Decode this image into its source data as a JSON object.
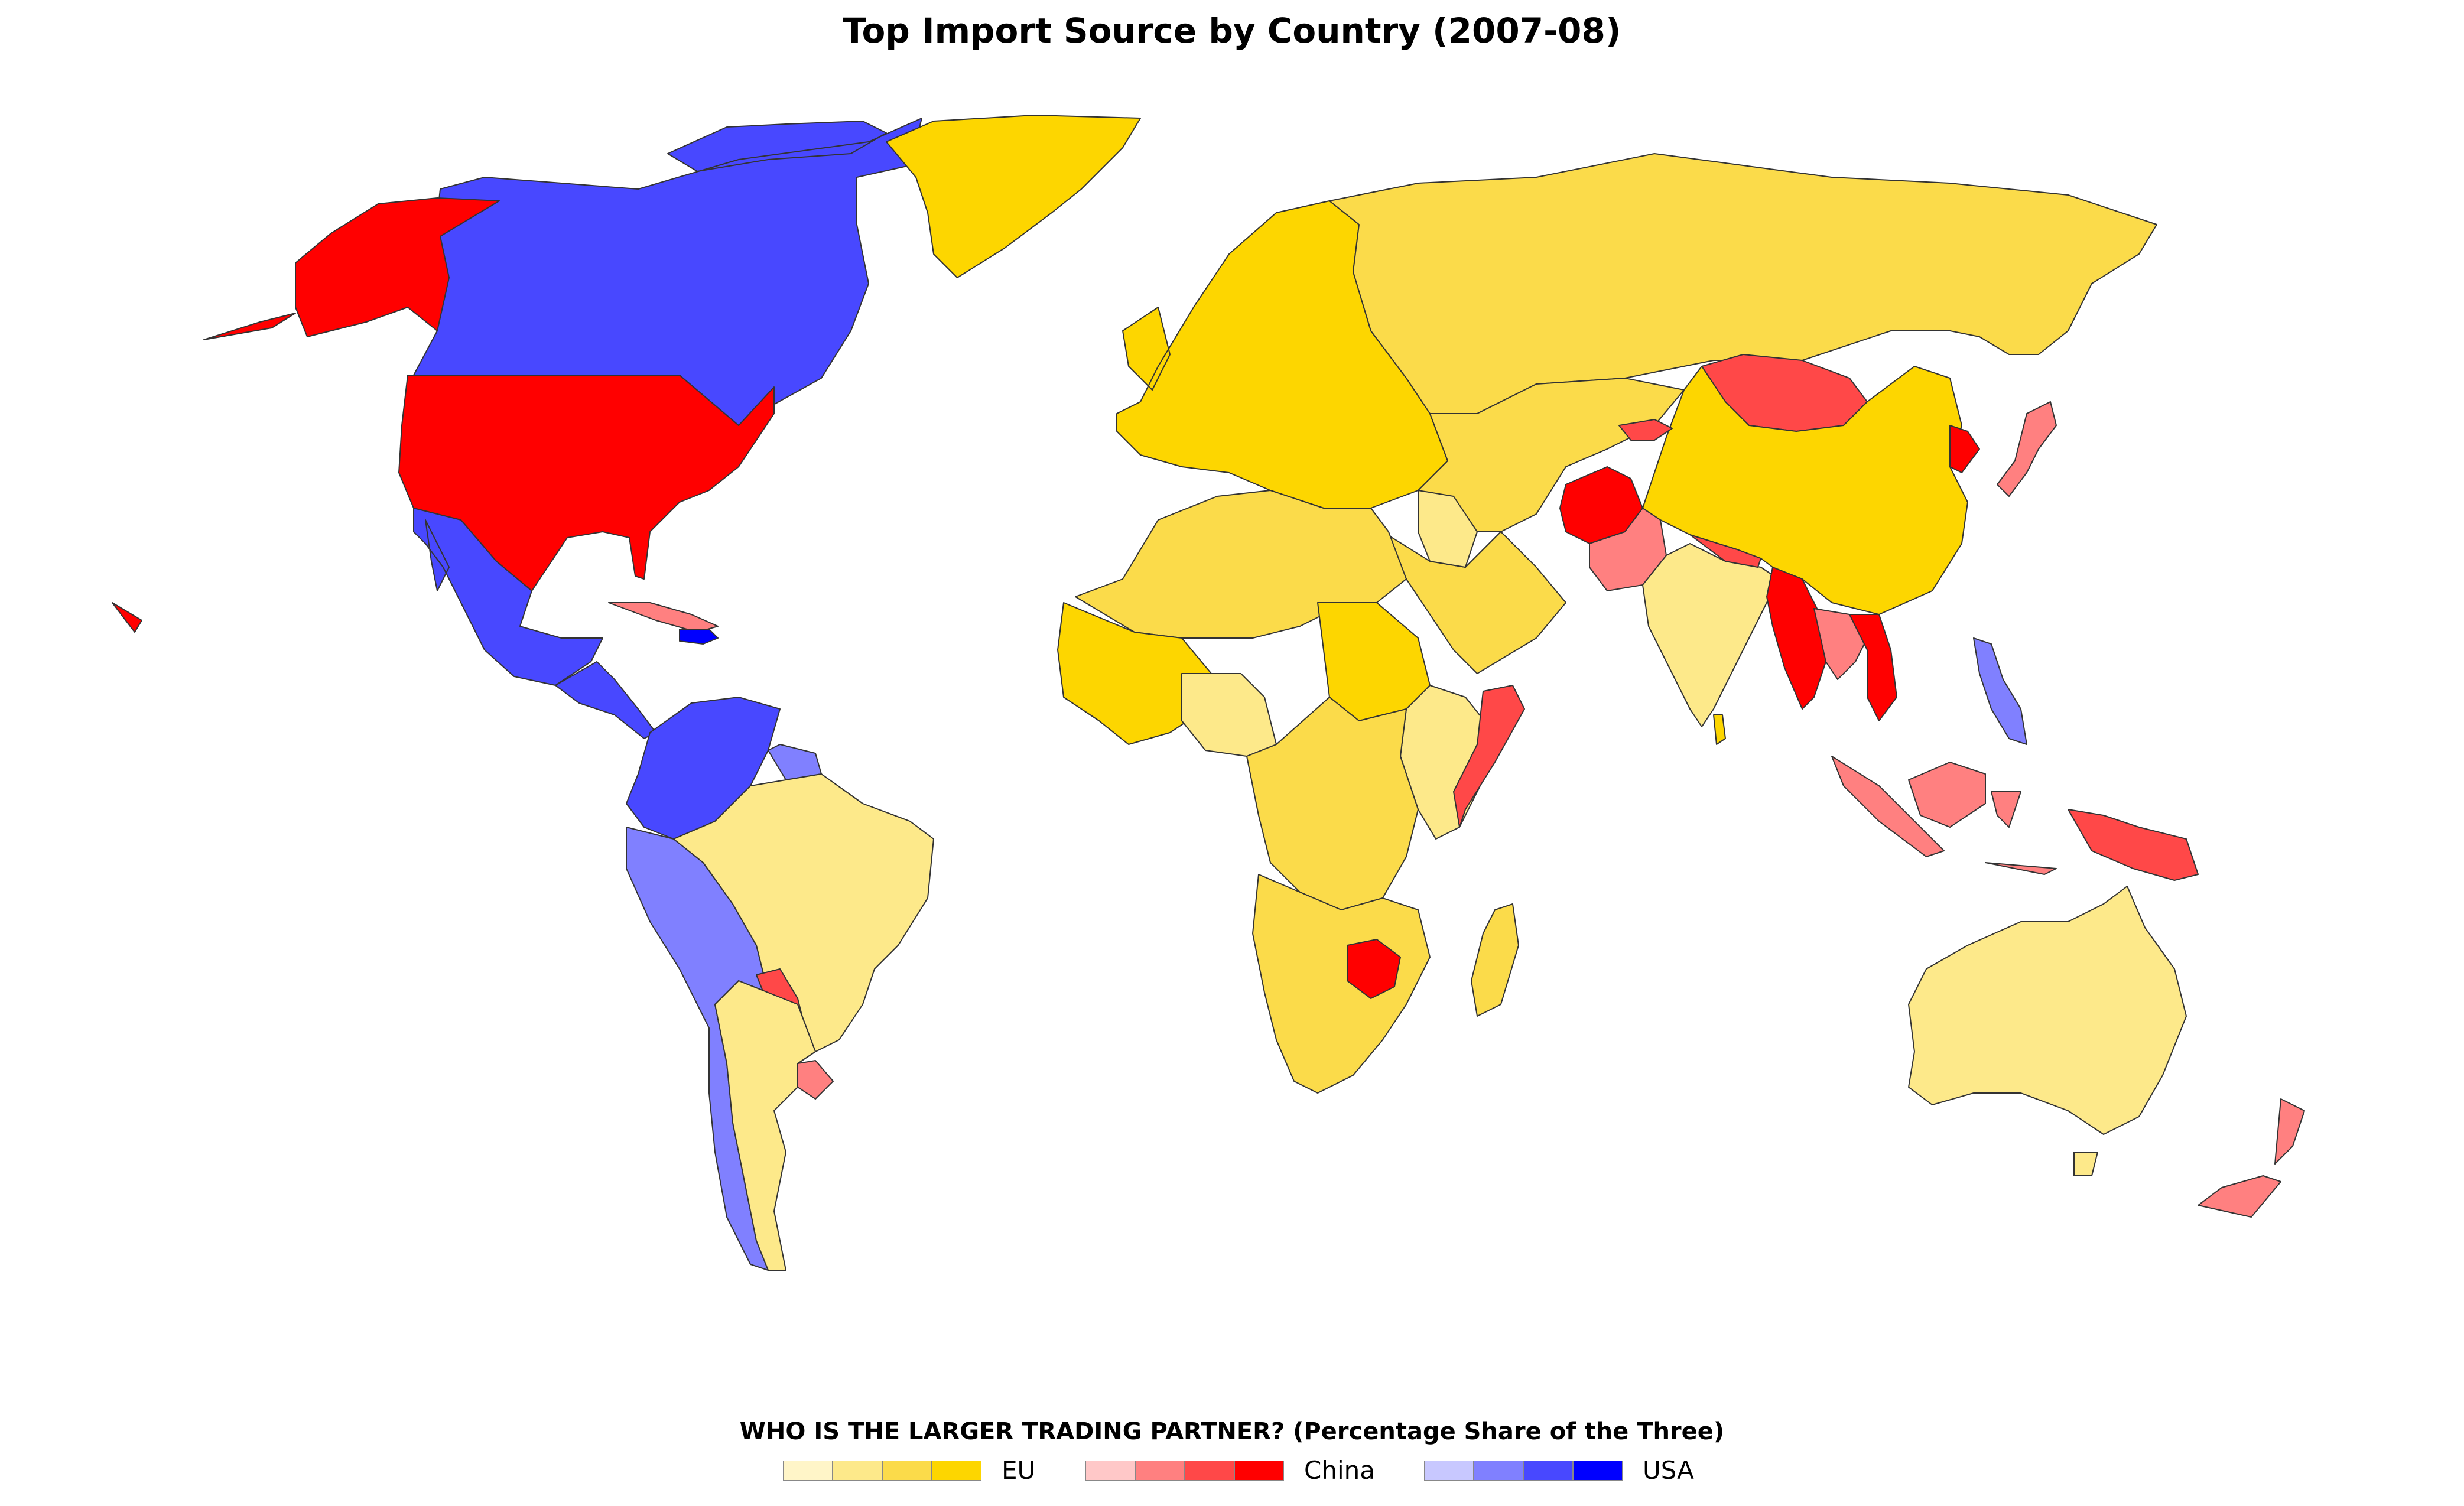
{
  "title": "Top Import Source by Country (2007-08)",
  "legend": {
    "title": "WHO IS THE LARGER TRADING PARTNER? (Percentage Share of the Three)",
    "groups": [
      {
        "label": "EU",
        "colors": [
          "#fff5c8",
          "#fde98a",
          "#fbdb4a",
          "#fdd600"
        ]
      },
      {
        "label": "China",
        "colors": [
          "#ffc8c8",
          "#ff8080",
          "#ff4848",
          "#ff0000"
        ]
      },
      {
        "label": "USA",
        "colors": [
          "#c8c8ff",
          "#8080ff",
          "#4848ff",
          "#0000ff"
        ]
      }
    ]
  },
  "regions": [
    {
      "name": "Canada",
      "partner": "USA",
      "level": 3
    },
    {
      "name": "Greenland",
      "partner": "EU",
      "level": 4
    },
    {
      "name": "Alaska",
      "partner": "China",
      "level": 4
    },
    {
      "name": "United States",
      "partner": "China",
      "level": 4
    },
    {
      "name": "Mexico",
      "partner": "USA",
      "level": 3
    },
    {
      "name": "Central America",
      "partner": "USA",
      "level": 3
    },
    {
      "name": "Cuba",
      "partner": "China",
      "level": 2
    },
    {
      "name": "Hispaniola",
      "partner": "USA",
      "level": 4
    },
    {
      "name": "Northern South America",
      "partner": "USA",
      "level": 3
    },
    {
      "name": "Peru / Bolivia / Chile",
      "partner": "USA",
      "level": 2
    },
    {
      "name": "Guianas",
      "partner": "USA",
      "level": 2
    },
    {
      "name": "Brazil",
      "partner": "EU",
      "level": 2
    },
    {
      "name": "Paraguay",
      "partner": "China",
      "level": 3
    },
    {
      "name": "Uruguay",
      "partner": "China",
      "level": 2
    },
    {
      "name": "Argentina",
      "partner": "EU",
      "level": 2
    },
    {
      "name": "Europe",
      "partner": "EU",
      "level": 4
    },
    {
      "name": "Russia",
      "partner": "EU",
      "level": 3
    },
    {
      "name": "Central Asia / Middle East",
      "partner": "EU",
      "level": 3
    },
    {
      "name": "Arabian Peninsula",
      "partner": "EU",
      "level": 3
    },
    {
      "name": "Iraq",
      "partner": "EU",
      "level": 2
    },
    {
      "name": "Afghanistan",
      "partner": "China",
      "level": 4
    },
    {
      "name": "Pakistan",
      "partner": "China",
      "level": 2
    },
    {
      "name": "India",
      "partner": "EU",
      "level": 2
    },
    {
      "name": "Sri Lanka",
      "partner": "EU",
      "level": 4
    },
    {
      "name": "Nepal / Bangladesh",
      "partner": "China",
      "level": 3
    },
    {
      "name": "Mongolia",
      "partner": "China",
      "level": 3
    },
    {
      "name": "China",
      "partner": "EU",
      "level": 4
    },
    {
      "name": "North Korea",
      "partner": "China",
      "level": 4
    },
    {
      "name": "Japan",
      "partner": "China",
      "level": 2
    },
    {
      "name": "Kyrgyzstan",
      "partner": "China",
      "level": 3
    },
    {
      "name": "Myanmar",
      "partner": "China",
      "level": 4
    },
    {
      "name": "Thailand",
      "partner": "China",
      "level": 2
    },
    {
      "name": "Vietnam",
      "partner": "China",
      "level": 4
    },
    {
      "name": "Philippines",
      "partner": "USA",
      "level": 2
    },
    {
      "name": "Indonesia",
      "partner": "China",
      "level": 2
    },
    {
      "name": "Papua New Guinea",
      "partner": "China",
      "level": 3
    },
    {
      "name": "Australia",
      "partner": "EU",
      "level": 2
    },
    {
      "name": "New Zealand",
      "partner": "China",
      "level": 2
    },
    {
      "name": "North Africa",
      "partner": "EU",
      "level": 3
    },
    {
      "name": "West Africa",
      "partner": "EU",
      "level": 4
    },
    {
      "name": "Nigeria region",
      "partner": "EU",
      "level": 2
    },
    {
      "name": "Sudan",
      "partner": "EU",
      "level": 4
    },
    {
      "name": "East Africa",
      "partner": "EU",
      "level": 2
    },
    {
      "name": "Somalia",
      "partner": "China",
      "level": 3
    },
    {
      "name": "Central Africa",
      "partner": "EU",
      "level": 3
    },
    {
      "name": "Southern Africa",
      "partner": "EU",
      "level": 3
    },
    {
      "name": "Zimbabwe",
      "partner": "China",
      "level": 4
    },
    {
      "name": "Madagascar",
      "partner": "EU",
      "level": 3
    }
  ]
}
